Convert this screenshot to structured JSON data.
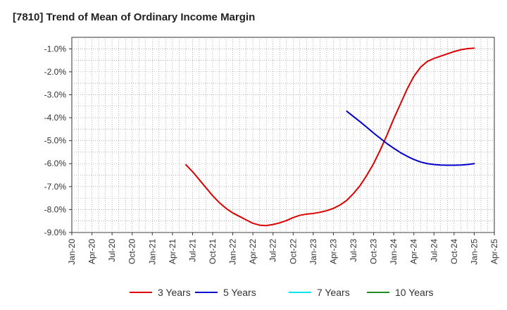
{
  "chart_data": {
    "type": "line",
    "title": "[7810]  Trend of Mean of Ordinary Income Margin",
    "xlabel": "",
    "ylabel": "",
    "categories": [
      "Jan-20",
      "Apr-20",
      "Jul-20",
      "Oct-20",
      "Jan-21",
      "Apr-21",
      "Jul-21",
      "Oct-21",
      "Jan-22",
      "Apr-22",
      "Jul-22",
      "Oct-22",
      "Jan-23",
      "Apr-23",
      "Jul-23",
      "Oct-23",
      "Jan-24",
      "Apr-24",
      "Jul-24",
      "Oct-24",
      "Jan-25",
      "Apr-25"
    ],
    "ylim": [
      -9.0,
      -0.5
    ],
    "yticks": [
      "-1.0%",
      "-2.0%",
      "-3.0%",
      "-4.0%",
      "-5.0%",
      "-6.0%",
      "-7.0%",
      "-8.0%",
      "-9.0%"
    ],
    "ytick_values": [
      -1,
      -2,
      -3,
      -4,
      -5,
      -6,
      -7,
      -8,
      -9
    ],
    "grid": true,
    "legend_position": "bottom",
    "series": [
      {
        "name": "3 Years",
        "color": "#dd0000",
        "points": [
          [
            "Jun-21",
            -6.05
          ],
          [
            "Jul-21",
            -6.35
          ],
          [
            "Aug-21",
            -6.7
          ],
          [
            "Sep-21",
            -7.05
          ],
          [
            "Oct-21",
            -7.4
          ],
          [
            "Nov-21",
            -7.7
          ],
          [
            "Dec-21",
            -7.95
          ],
          [
            "Jan-22",
            -8.15
          ],
          [
            "Feb-22",
            -8.3
          ],
          [
            "Mar-22",
            -8.45
          ],
          [
            "Apr-22",
            -8.6
          ],
          [
            "May-22",
            -8.68
          ],
          [
            "Jun-22",
            -8.7
          ],
          [
            "Jul-22",
            -8.65
          ],
          [
            "Aug-22",
            -8.58
          ],
          [
            "Sep-22",
            -8.48
          ],
          [
            "Oct-22",
            -8.35
          ],
          [
            "Nov-22",
            -8.25
          ],
          [
            "Dec-22",
            -8.2
          ],
          [
            "Jan-23",
            -8.17
          ],
          [
            "Feb-23",
            -8.12
          ],
          [
            "Mar-23",
            -8.05
          ],
          [
            "Apr-23",
            -7.95
          ],
          [
            "May-23",
            -7.8
          ],
          [
            "Jun-23",
            -7.6
          ],
          [
            "Jul-23",
            -7.3
          ],
          [
            "Aug-23",
            -6.95
          ],
          [
            "Sep-23",
            -6.5
          ],
          [
            "Oct-23",
            -6.0
          ],
          [
            "Nov-23",
            -5.4
          ],
          [
            "Dec-23",
            -4.75
          ],
          [
            "Jan-24",
            -4.05
          ],
          [
            "Feb-24",
            -3.4
          ],
          [
            "Mar-24",
            -2.75
          ],
          [
            "Apr-24",
            -2.2
          ],
          [
            "May-24",
            -1.8
          ],
          [
            "Jun-24",
            -1.55
          ],
          [
            "Jul-24",
            -1.42
          ],
          [
            "Aug-24",
            -1.32
          ],
          [
            "Sep-24",
            -1.22
          ],
          [
            "Oct-24",
            -1.12
          ],
          [
            "Nov-24",
            -1.04
          ],
          [
            "Dec-24",
            -0.99
          ],
          [
            "Jan-25",
            -0.97
          ]
        ]
      },
      {
        "name": "5 Years",
        "color": "#0000cc",
        "points": [
          [
            "Jun-23",
            -3.72
          ],
          [
            "Jul-23",
            -3.95
          ],
          [
            "Aug-23",
            -4.18
          ],
          [
            "Sep-23",
            -4.42
          ],
          [
            "Oct-23",
            -4.67
          ],
          [
            "Nov-23",
            -4.9
          ],
          [
            "Dec-23",
            -5.13
          ],
          [
            "Jan-24",
            -5.33
          ],
          [
            "Feb-24",
            -5.52
          ],
          [
            "Mar-24",
            -5.68
          ],
          [
            "Apr-24",
            -5.82
          ],
          [
            "May-24",
            -5.93
          ],
          [
            "Jun-24",
            -6.0
          ],
          [
            "Jul-24",
            -6.04
          ],
          [
            "Aug-24",
            -6.06
          ],
          [
            "Sep-24",
            -6.07
          ],
          [
            "Oct-24",
            -6.07
          ],
          [
            "Nov-24",
            -6.06
          ],
          [
            "Dec-24",
            -6.04
          ],
          [
            "Jan-25",
            -6.0
          ]
        ]
      },
      {
        "name": "7 Years",
        "color": "#00e5ee",
        "points": []
      },
      {
        "name": "10 Years",
        "color": "#228b22",
        "points": []
      }
    ]
  }
}
